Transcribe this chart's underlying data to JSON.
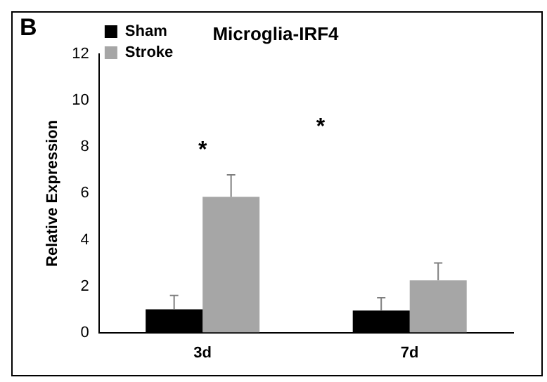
{
  "chart_data": {
    "type": "bar",
    "title": "Microglia-IRF4",
    "ylabel": "Relative Expression",
    "categories": [
      "3d",
      "7d"
    ],
    "series": [
      {
        "name": "Sham",
        "color": "#000000",
        "values": [
          1.0,
          0.95
        ],
        "errors": [
          0.6,
          0.55
        ]
      },
      {
        "name": "Stroke",
        "color": "#a6a6a6",
        "values": [
          5.85,
          2.25
        ],
        "errors": [
          0.95,
          0.75
        ]
      }
    ],
    "ylim": [
      0,
      12
    ],
    "yticks": [
      0,
      2,
      4,
      6,
      8,
      10,
      12
    ],
    "grid": false,
    "legend": "top left",
    "annotations": [
      "B",
      "*",
      "*"
    ]
  }
}
